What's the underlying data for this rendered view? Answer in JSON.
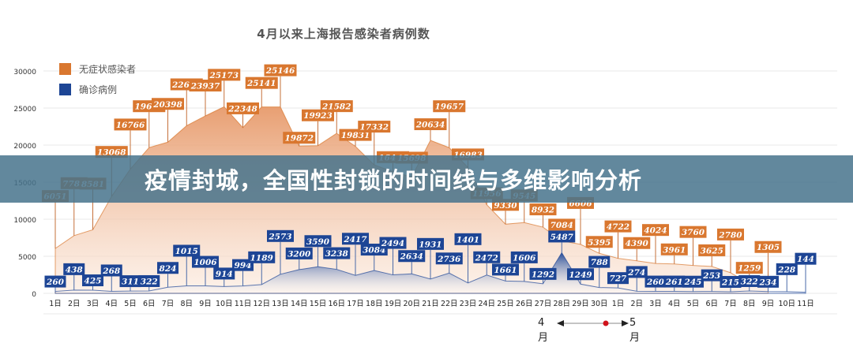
{
  "banner": {
    "title": "疫情封城，全国性封锁的时间线与多维影响分析"
  },
  "colors": {
    "asymptomatic": "#d9772f",
    "confirmed": "#1d4595",
    "banner_bg": "#46738c"
  },
  "month_nav": {
    "left_label": "4月",
    "right_label": "5月",
    "marker_color": "#d0121b"
  },
  "chart_data": {
    "type": "area",
    "title": "4月以来上海报告感染者病例数",
    "xlabel": "",
    "ylabel": "",
    "ylim": [
      0,
      30000
    ],
    "yticks": [
      0,
      5000,
      10000,
      15000,
      20000,
      25000,
      30000
    ],
    "grid": true,
    "legend_position": "top-left",
    "categories": [
      "1日",
      "2日",
      "3日",
      "4日",
      "5日",
      "6日",
      "7日",
      "8日",
      "9日",
      "10日",
      "11日",
      "12日",
      "13日",
      "14日",
      "15日",
      "16日",
      "17日",
      "18日",
      "19日",
      "20日",
      "21日",
      "22日",
      "23日",
      "24日",
      "25日",
      "26日",
      "27日",
      "28日",
      "29日",
      "30日",
      "1日",
      "2日",
      "3日",
      "4日",
      "5日",
      "6日",
      "7日",
      "8日",
      "9日",
      "10日",
      "11日"
    ],
    "months": [
      {
        "label": "4月",
        "start": 0,
        "end": 29
      },
      {
        "label": "5月",
        "start": 30,
        "end": 40
      }
    ],
    "series": [
      {
        "name": "无症状感染者",
        "color": "#d9772f",
        "values": [
          6051,
          7788,
          8581,
          13068,
          16766,
          19660,
          20398,
          22609,
          23937,
          25173,
          22348,
          25141,
          25146,
          19872,
          19923,
          21582,
          19831,
          17332,
          16407,
          15698,
          20634,
          19657,
          16983,
          11956,
          9330,
          9545,
          8932,
          7084,
          6606,
          5395,
          4722,
          4390,
          4024,
          3961,
          3760,
          3625,
          2780,
          1259,
          1305,
          null,
          null
        ]
      },
      {
        "name": "确诊病例",
        "color": "#1d4595",
        "values": [
          260,
          438,
          425,
          268,
          311,
          322,
          824,
          1015,
          1006,
          914,
          994,
          1189,
          2573,
          3200,
          3590,
          3238,
          2417,
          3084,
          2494,
          2634,
          1931,
          2736,
          1401,
          2472,
          1661,
          1606,
          1292,
          5487,
          1249,
          788,
          727,
          274,
          260,
          261,
          245,
          253,
          215,
          322,
          234,
          228,
          144
        ]
      }
    ]
  }
}
